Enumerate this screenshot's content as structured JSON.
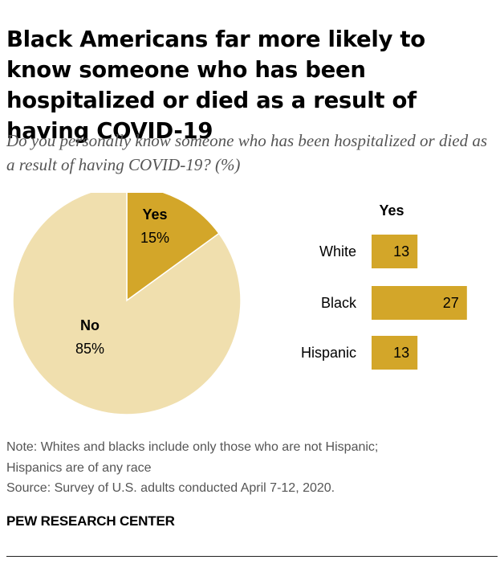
{
  "title": "Black Americans far more likely to know someone who has been hospitalized or died as a result of having COVID-19",
  "subtitle": "Do you personally know someone who has been hospitalized or died as a result of having COVID-19? (%)",
  "note_line1": "Note: Whites and blacks include only those who are not Hispanic;",
  "note_line2": "Hispanics are of any race",
  "source": "Source: Survey of U.S. adults conducted April 7-12, 2020.",
  "brand": "PEW RESEARCH CENTER",
  "colors": {
    "yes": "#D3A629",
    "no": "#F0DFAE",
    "border": "#ffffff",
    "text": "#000000"
  },
  "chart_data": [
    {
      "type": "pie",
      "slices": [
        {
          "label": "Yes",
          "value": 15,
          "display": "15%"
        },
        {
          "label": "No",
          "value": 85,
          "display": "85%"
        }
      ]
    },
    {
      "type": "bar",
      "orientation": "horizontal",
      "column_header": "Yes",
      "categories": [
        "White",
        "Black",
        "Hispanic"
      ],
      "values": [
        13,
        27,
        13
      ]
    }
  ]
}
